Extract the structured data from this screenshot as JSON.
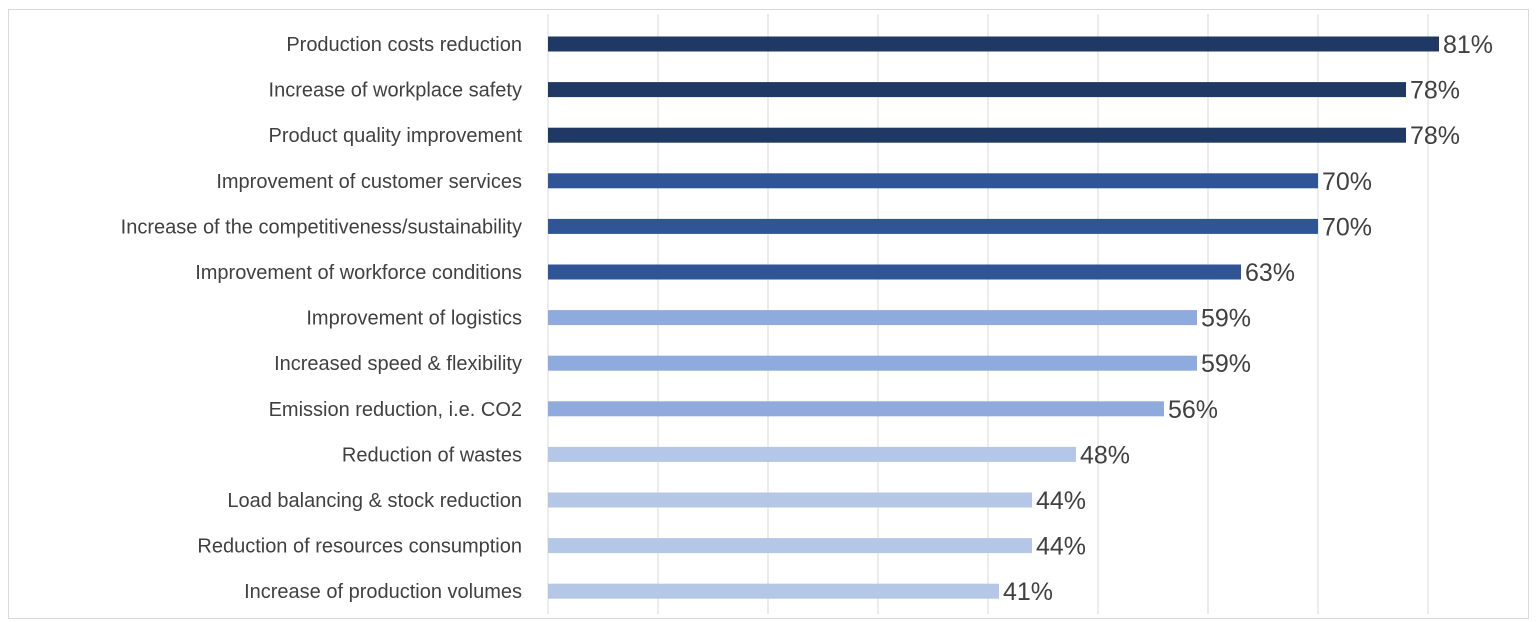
{
  "chart_data": {
    "type": "bar",
    "orientation": "horizontal",
    "categories": [
      "Production costs reduction",
      "Increase of workplace safety",
      "Product quality improvement",
      "Improvement of customer services",
      "Increase of the competitiveness/sustainability",
      "Improvement of workforce conditions",
      "Improvement of logistics",
      "Increased speed & flexibility",
      "Emission reduction, i.e. CO2",
      "Reduction of wastes",
      "Load balancing & stock reduction",
      "Reduction of resources consumption",
      "Increase of production volumes"
    ],
    "values": [
      81,
      78,
      78,
      70,
      70,
      63,
      59,
      59,
      56,
      48,
      44,
      44,
      41
    ],
    "value_labels": [
      "81%",
      "78%",
      "78%",
      "70%",
      "70%",
      "63%",
      "59%",
      "59%",
      "56%",
      "48%",
      "44%",
      "44%",
      "41%"
    ],
    "unit": "%",
    "xlim": [
      0,
      80
    ],
    "grid": true,
    "legend": "none",
    "colors": {
      "dark": "#1f3864",
      "medium": "#2f5597",
      "light": "#8faadc",
      "lighter": "#b4c7e7",
      "gridline": "#d9d9d9",
      "text": "#404040"
    },
    "bar_color_groups": [
      "dark",
      "dark",
      "dark",
      "medium",
      "medium",
      "medium",
      "light",
      "light",
      "light",
      "lighter",
      "lighter",
      "lighter",
      "lighter"
    ]
  }
}
